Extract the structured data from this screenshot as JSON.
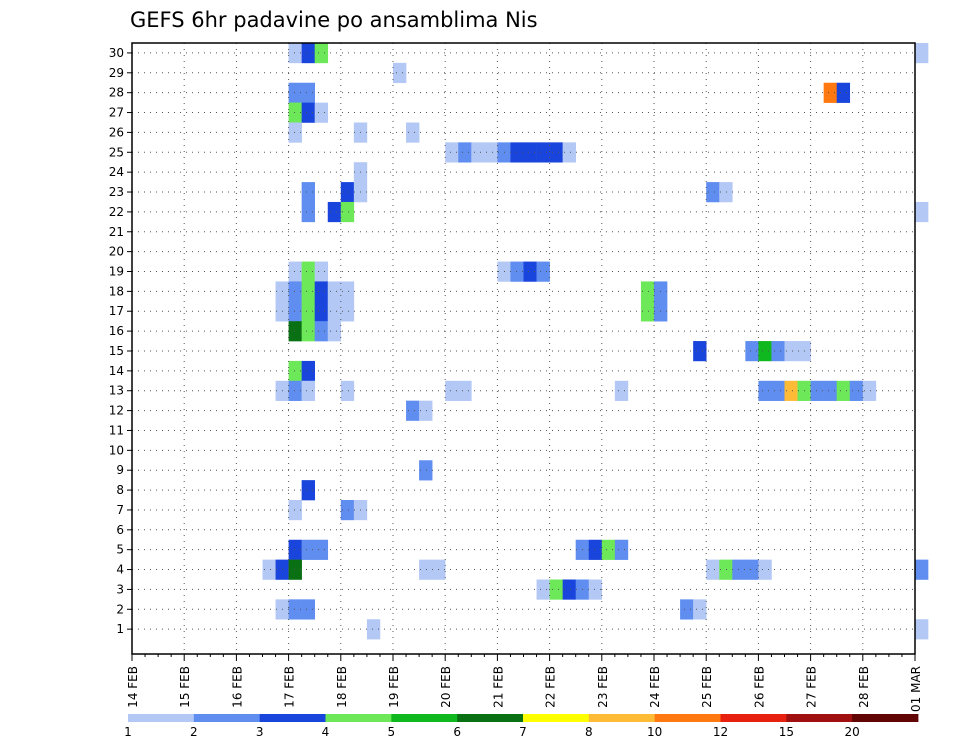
{
  "chart_data": {
    "type": "heatmap",
    "title": "GEFS 6hr padavine po ansamblima Nis",
    "xlabel": "",
    "ylabel": "",
    "x_tick_labels": [
      "14 FEB",
      "15 FEB",
      "16 FEB",
      "17 FEB",
      "18 FEB",
      "19 FEB",
      "20 FEB",
      "21 FEB",
      "22 FEB",
      "23 FEB",
      "24 FEB",
      "25 FEB",
      "26 FEB",
      "27 FEB",
      "28 FEB",
      "01 MAR"
    ],
    "x_steps_per_day": 4,
    "y_members": [
      1,
      2,
      3,
      4,
      5,
      6,
      7,
      8,
      9,
      10,
      11,
      12,
      13,
      14,
      15,
      16,
      17,
      18,
      19,
      20,
      21,
      22,
      23,
      24,
      25,
      26,
      27,
      28,
      29,
      30
    ],
    "grid": true,
    "colorbar": {
      "levels": [
        1,
        2,
        3,
        4,
        5,
        6,
        7,
        8,
        10,
        12,
        15,
        20
      ],
      "colors": [
        "#b4c8f5",
        "#5f8ef0",
        "#1a45dc",
        "#6ce858",
        "#10b820",
        "#0a7014",
        "#ffff00",
        "#ffba36",
        "#ff7810",
        "#e82010",
        "#a01010",
        "#600404"
      ]
    },
    "cells": [
      {
        "m": 30,
        "s": [
          [
            12,
            1
          ],
          [
            13,
            3
          ],
          [
            14,
            4
          ],
          [
            60,
            1
          ]
        ]
      },
      {
        "m": 29,
        "s": [
          [
            20,
            1
          ]
        ]
      },
      {
        "m": 28,
        "s": [
          [
            12,
            2
          ],
          [
            13,
            2
          ],
          [
            53,
            10
          ],
          [
            54,
            3
          ]
        ]
      },
      {
        "m": 27,
        "s": [
          [
            12,
            4
          ],
          [
            13,
            3
          ],
          [
            14,
            1
          ]
        ]
      },
      {
        "m": 26,
        "s": [
          [
            12,
            1
          ],
          [
            17,
            1
          ],
          [
            21,
            1
          ]
        ]
      },
      {
        "m": 25,
        "s": [
          [
            24,
            1
          ],
          [
            25,
            2
          ],
          [
            26,
            1
          ],
          [
            27,
            1
          ],
          [
            28,
            2
          ],
          [
            29,
            3
          ],
          [
            30,
            3
          ],
          [
            31,
            3
          ],
          [
            32,
            3
          ],
          [
            33,
            1
          ]
        ]
      },
      {
        "m": 24,
        "s": [
          [
            17,
            1
          ]
        ]
      },
      {
        "m": 23,
        "s": [
          [
            13,
            2
          ],
          [
            16,
            3
          ],
          [
            17,
            1
          ],
          [
            44,
            2
          ],
          [
            45,
            1
          ]
        ]
      },
      {
        "m": 22,
        "s": [
          [
            13,
            2
          ],
          [
            15,
            3
          ],
          [
            16,
            4
          ],
          [
            60,
            1
          ]
        ]
      },
      {
        "m": 19,
        "s": [
          [
            12,
            1
          ],
          [
            13,
            4
          ],
          [
            14,
            1
          ],
          [
            28,
            1
          ],
          [
            29,
            2
          ],
          [
            30,
            3
          ],
          [
            31,
            2
          ]
        ]
      },
      {
        "m": 18,
        "s": [
          [
            11,
            1
          ],
          [
            12,
            2
          ],
          [
            13,
            4
          ],
          [
            14,
            3
          ],
          [
            15,
            1
          ],
          [
            16,
            1
          ],
          [
            39,
            4
          ],
          [
            40,
            2
          ]
        ]
      },
      {
        "m": 17,
        "s": [
          [
            11,
            1
          ],
          [
            12,
            2
          ],
          [
            13,
            4
          ],
          [
            14,
            3
          ],
          [
            15,
            1
          ],
          [
            16,
            1
          ],
          [
            39,
            4
          ],
          [
            40,
            2
          ]
        ]
      },
      {
        "m": 16,
        "s": [
          [
            12,
            6
          ],
          [
            13,
            4
          ],
          [
            14,
            2
          ],
          [
            15,
            1
          ]
        ]
      },
      {
        "m": 15,
        "s": [
          [
            43,
            3
          ],
          [
            47,
            2
          ],
          [
            48,
            5
          ],
          [
            49,
            2
          ],
          [
            50,
            1
          ],
          [
            51,
            1
          ]
        ]
      },
      {
        "m": 14,
        "s": [
          [
            12,
            4
          ],
          [
            13,
            3
          ]
        ]
      },
      {
        "m": 13,
        "s": [
          [
            11,
            1
          ],
          [
            12,
            2
          ],
          [
            13,
            1
          ],
          [
            16,
            1
          ],
          [
            24,
            1
          ],
          [
            25,
            1
          ],
          [
            37,
            1
          ],
          [
            48,
            2
          ],
          [
            49,
            2
          ],
          [
            50,
            8
          ],
          [
            51,
            4
          ],
          [
            52,
            2
          ],
          [
            53,
            2
          ],
          [
            54,
            4
          ],
          [
            55,
            2
          ],
          [
            56,
            1
          ]
        ]
      },
      {
        "m": 12,
        "s": [
          [
            21,
            2
          ],
          [
            22,
            1
          ]
        ]
      },
      {
        "m": 9,
        "s": [
          [
            22,
            2
          ]
        ]
      },
      {
        "m": 8,
        "s": [
          [
            13,
            3
          ]
        ]
      },
      {
        "m": 7,
        "s": [
          [
            12,
            1
          ],
          [
            16,
            2
          ],
          [
            17,
            1
          ]
        ]
      },
      {
        "m": 5,
        "s": [
          [
            12,
            3
          ],
          [
            13,
            2
          ],
          [
            14,
            2
          ],
          [
            34,
            2
          ],
          [
            35,
            3
          ],
          [
            36,
            4
          ],
          [
            37,
            2
          ]
        ]
      },
      {
        "m": 4,
        "s": [
          [
            10,
            1
          ],
          [
            11,
            3
          ],
          [
            12,
            6
          ],
          [
            22,
            1
          ],
          [
            23,
            1
          ],
          [
            44,
            1
          ],
          [
            45,
            4
          ],
          [
            46,
            2
          ],
          [
            47,
            2
          ],
          [
            48,
            1
          ],
          [
            60,
            2
          ]
        ]
      },
      {
        "m": 3,
        "s": [
          [
            31,
            1
          ],
          [
            32,
            4
          ],
          [
            33,
            3
          ],
          [
            34,
            2
          ],
          [
            35,
            1
          ]
        ]
      },
      {
        "m": 2,
        "s": [
          [
            11,
            1
          ],
          [
            12,
            2
          ],
          [
            13,
            2
          ],
          [
            42,
            2
          ],
          [
            43,
            1
          ]
        ]
      },
      {
        "m": 1,
        "s": [
          [
            18,
            1
          ],
          [
            60,
            1
          ]
        ]
      }
    ]
  }
}
